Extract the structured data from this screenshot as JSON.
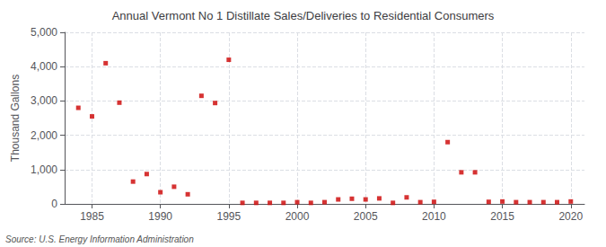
{
  "chart_data": {
    "type": "scatter",
    "title": "Annual Vermont No 1 Distillate Sales/Deliveries to Residential Consumers",
    "ylabel": "Thousand Gallons",
    "source": "Source: U.S. Energy Information Administration",
    "x": [
      1984,
      1985,
      1986,
      1987,
      1988,
      1989,
      1990,
      1991,
      1992,
      1993,
      1994,
      1995,
      1996,
      1997,
      1998,
      1999,
      2000,
      2001,
      2002,
      2003,
      2004,
      2005,
      2006,
      2007,
      2008,
      2009,
      2010,
      2011,
      2012,
      2013,
      2014,
      2015,
      2016,
      2017,
      2018,
      2019,
      2020
    ],
    "values": [
      2800,
      2550,
      4100,
      2950,
      650,
      870,
      340,
      500,
      280,
      3150,
      2940,
      4200,
      30,
      30,
      30,
      30,
      50,
      30,
      50,
      130,
      150,
      130,
      160,
      30,
      190,
      50,
      60,
      1800,
      920,
      920,
      60,
      70,
      50,
      50,
      50,
      50,
      70
    ],
    "color": "#cc0000",
    "marker": "square",
    "xlim": [
      1983,
      2021
    ],
    "xticks": [
      1985,
      1990,
      1995,
      2000,
      2005,
      2010,
      2015,
      2020
    ],
    "ylim": [
      0,
      5000
    ],
    "yticks": [
      0,
      {
        "value": 1000,
        "label": "1,000"
      },
      {
        "value": 2000,
        "label": "2,000"
      },
      {
        "value": 3000,
        "label": "3,000"
      },
      {
        "value": 4000,
        "label": "4,000"
      },
      {
        "value": 5000,
        "label": "5,000"
      }
    ],
    "grid": true
  }
}
